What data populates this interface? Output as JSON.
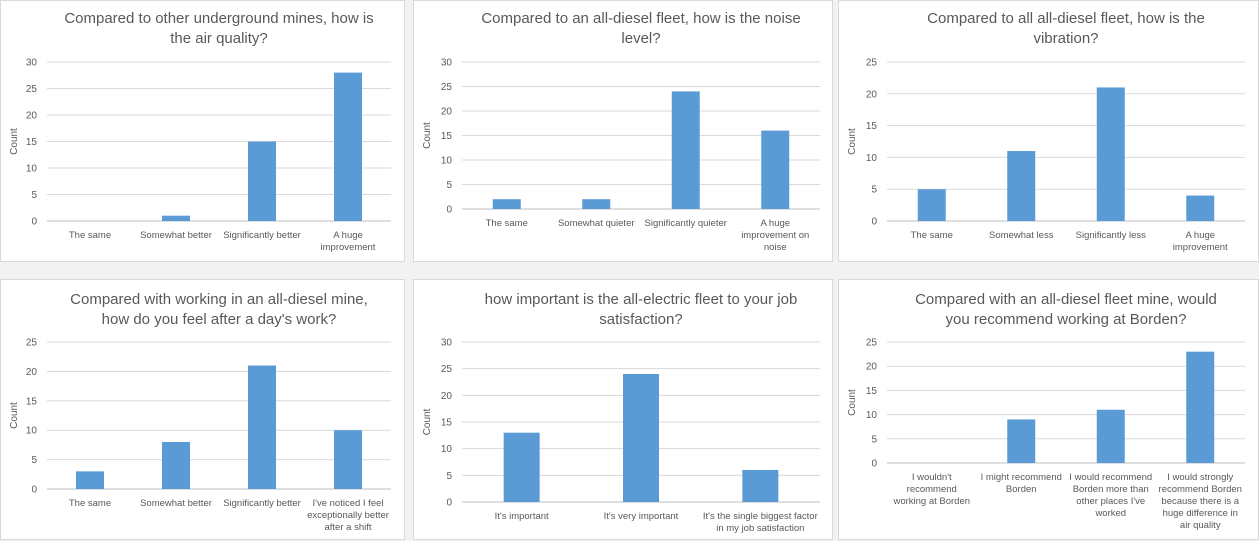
{
  "chart_data": [
    {
      "type": "bar",
      "title": [
        "Compared to other underground mines, how is",
        "the air quality?"
      ],
      "ylabel": "Count",
      "ylim": [
        0,
        30
      ],
      "yticks": [
        0,
        5,
        10,
        15,
        20,
        25,
        30
      ],
      "categories": [
        [
          "The same"
        ],
        [
          "Somewhat better"
        ],
        [
          "Significantly better"
        ],
        [
          "A huge",
          "improvement"
        ]
      ],
      "values": [
        0,
        1,
        15,
        28
      ],
      "grid": true,
      "bar_color": "#5b9bd5"
    },
    {
      "type": "bar",
      "title": [
        "Compared to an all-diesel fleet, how is the noise",
        "level?"
      ],
      "ylabel": "Count",
      "ylim": [
        0,
        30
      ],
      "yticks": [
        0,
        5,
        10,
        15,
        20,
        25,
        30
      ],
      "categories": [
        [
          "The same"
        ],
        [
          "Somewhat quieter"
        ],
        [
          "Significantly quieter"
        ],
        [
          "A huge",
          "improvement on",
          "noise"
        ]
      ],
      "values": [
        2,
        2,
        24,
        16
      ],
      "grid": true,
      "bar_color": "#5b9bd5"
    },
    {
      "type": "bar",
      "title": [
        "Compared to all all-diesel fleet, how is the",
        "vibration?"
      ],
      "ylabel": "Count",
      "ylim": [
        0,
        25
      ],
      "yticks": [
        0,
        5,
        10,
        15,
        20,
        25
      ],
      "categories": [
        [
          "The same"
        ],
        [
          "Somewhat less"
        ],
        [
          "Significantly less"
        ],
        [
          "A huge",
          "improvement"
        ]
      ],
      "values": [
        5,
        11,
        21,
        4
      ],
      "grid": true,
      "bar_color": "#5b9bd5"
    },
    {
      "type": "bar",
      "title": [
        "Compared with working in an all-diesel mine,",
        "how do you feel after a day's work?"
      ],
      "ylabel": "Count",
      "ylim": [
        0,
        25
      ],
      "yticks": [
        0,
        5,
        10,
        15,
        20,
        25
      ],
      "categories": [
        [
          "The same"
        ],
        [
          "Somewhat better"
        ],
        [
          "Significantly better"
        ],
        [
          "I've noticed I feel",
          "exceptionally better",
          "after a shift"
        ]
      ],
      "values": [
        3,
        8,
        21,
        10
      ],
      "grid": true,
      "bar_color": "#5b9bd5"
    },
    {
      "type": "bar",
      "title": [
        "how important is the all-electric fleet to your job",
        "satisfaction?"
      ],
      "ylabel": "Count",
      "ylim": [
        0,
        30
      ],
      "yticks": [
        0,
        5,
        10,
        15,
        20,
        25,
        30
      ],
      "categories": [
        [
          "It's important"
        ],
        [
          "It's very important"
        ],
        [
          "It's the single biggest factor",
          "in my job satisfaction"
        ]
      ],
      "values": [
        13,
        24,
        6
      ],
      "grid": true,
      "bar_color": "#5b9bd5"
    },
    {
      "type": "bar",
      "title": [
        "Compared with an all-diesel fleet mine, would",
        "you recommend working at Borden?"
      ],
      "ylabel": "Count",
      "ylim": [
        0,
        25
      ],
      "yticks": [
        0,
        5,
        10,
        15,
        20,
        25
      ],
      "categories": [
        [
          "I wouldn't",
          "recommend",
          "working at Borden"
        ],
        [
          "I might recommend",
          "Borden"
        ],
        [
          "I would recommend",
          "Borden more than",
          "other places I've",
          "worked"
        ],
        [
          "I would strongly",
          "recommend Borden",
          "because there is a",
          "huge difference in",
          "air quality"
        ]
      ],
      "values": [
        0,
        9,
        11,
        23
      ],
      "grid": true,
      "bar_color": "#5b9bd5"
    }
  ]
}
